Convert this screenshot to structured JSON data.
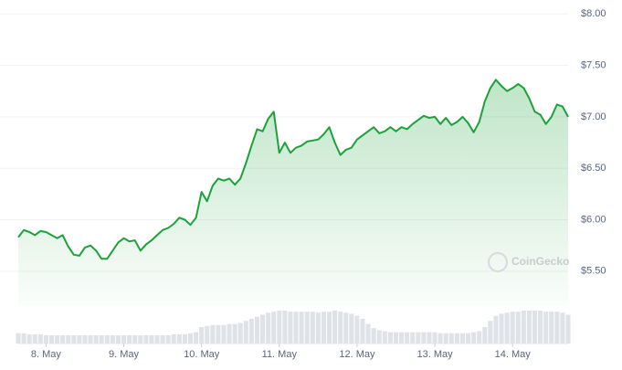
{
  "chart_data": {
    "type": "line",
    "watermark": "CoinGecko",
    "categories": [
      null,
      null,
      null,
      null,
      null,
      "8. May",
      null,
      null,
      null,
      null,
      null,
      null,
      null,
      null,
      null,
      null,
      null,
      null,
      null,
      "9. May",
      null,
      null,
      null,
      null,
      null,
      null,
      null,
      null,
      null,
      null,
      null,
      null,
      null,
      "10. May",
      null,
      null,
      null,
      null,
      null,
      null,
      null,
      null,
      null,
      null,
      null,
      null,
      null,
      "11. May",
      null,
      null,
      null,
      null,
      null,
      null,
      null,
      null,
      null,
      null,
      null,
      null,
      null,
      "12. May",
      null,
      null,
      null,
      null,
      null,
      null,
      null,
      null,
      null,
      null,
      null,
      null,
      null,
      "13. May",
      null,
      null,
      null,
      null,
      null,
      null,
      null,
      null,
      null,
      null,
      null,
      null,
      null,
      "14. May",
      null,
      null,
      null,
      null,
      null,
      null,
      null,
      null,
      null,
      null
    ],
    "series": [
      {
        "color": "#1ba239",
        "values": [
          5.83,
          5.9,
          5.88,
          5.85,
          5.89,
          5.88,
          5.85,
          5.82,
          5.85,
          5.74,
          5.66,
          5.65,
          5.73,
          5.75,
          5.7,
          5.62,
          5.62,
          5.7,
          5.78,
          5.82,
          5.79,
          5.8,
          5.7,
          5.76,
          5.8,
          5.85,
          5.9,
          5.92,
          5.96,
          6.02,
          6.0,
          5.95,
          6.02,
          6.27,
          6.18,
          6.33,
          6.4,
          6.38,
          6.4,
          6.34,
          6.4,
          6.55,
          6.72,
          6.88,
          6.86,
          6.98,
          7.05,
          6.65,
          6.75,
          6.65,
          6.7,
          6.72,
          6.76,
          6.77,
          6.78,
          6.83,
          6.9,
          6.75,
          6.63,
          6.68,
          6.7,
          6.78,
          6.82,
          6.86,
          6.9,
          6.84,
          6.86,
          6.9,
          6.86,
          6.9,
          6.88,
          6.93,
          6.97,
          7.01,
          6.99,
          7.0,
          6.93,
          6.99,
          6.92,
          6.95,
          7.0,
          6.94,
          6.85,
          6.95,
          7.15,
          7.28,
          7.36,
          7.3,
          7.25,
          7.28,
          7.32,
          7.28,
          7.18,
          7.05,
          7.02,
          6.93,
          7.0,
          7.12,
          7.1,
          7.0
        ]
      }
    ],
    "volume": {
      "color": "#dfe3e8",
      "values": [
        10,
        10,
        9,
        9,
        9,
        8,
        8,
        8,
        8,
        8,
        8,
        8,
        8,
        8,
        8,
        8,
        8,
        8,
        8,
        8,
        8,
        8,
        8,
        8,
        8,
        8,
        8,
        8,
        9,
        9,
        9,
        10,
        11,
        16,
        17,
        18,
        18,
        18,
        19,
        19,
        20,
        22,
        24,
        26,
        28,
        30,
        31,
        32,
        32,
        31,
        31,
        31,
        31,
        31,
        30,
        31,
        31,
        32,
        31,
        30,
        29,
        27,
        24,
        19,
        15,
        13,
        12,
        11,
        11,
        11,
        11,
        11,
        11,
        11,
        11,
        11,
        10,
        10,
        10,
        10,
        10,
        10,
        11,
        12,
        16,
        22,
        27,
        29,
        30,
        31,
        31,
        32,
        32,
        32,
        32,
        31,
        31,
        31,
        30,
        28
      ]
    },
    "ylim": [
      5.25,
      8.1
    ],
    "yticks": [
      {
        "value": 8,
        "label": "$8.00"
      },
      {
        "value": 7.5,
        "label": "$7.50"
      },
      {
        "value": 7,
        "label": "$7.00"
      },
      {
        "value": 6.5,
        "label": "$6.50"
      },
      {
        "value": 6,
        "label": "$6.00"
      },
      {
        "value": 5.5,
        "label": "$5.50"
      }
    ],
    "grid": true
  }
}
